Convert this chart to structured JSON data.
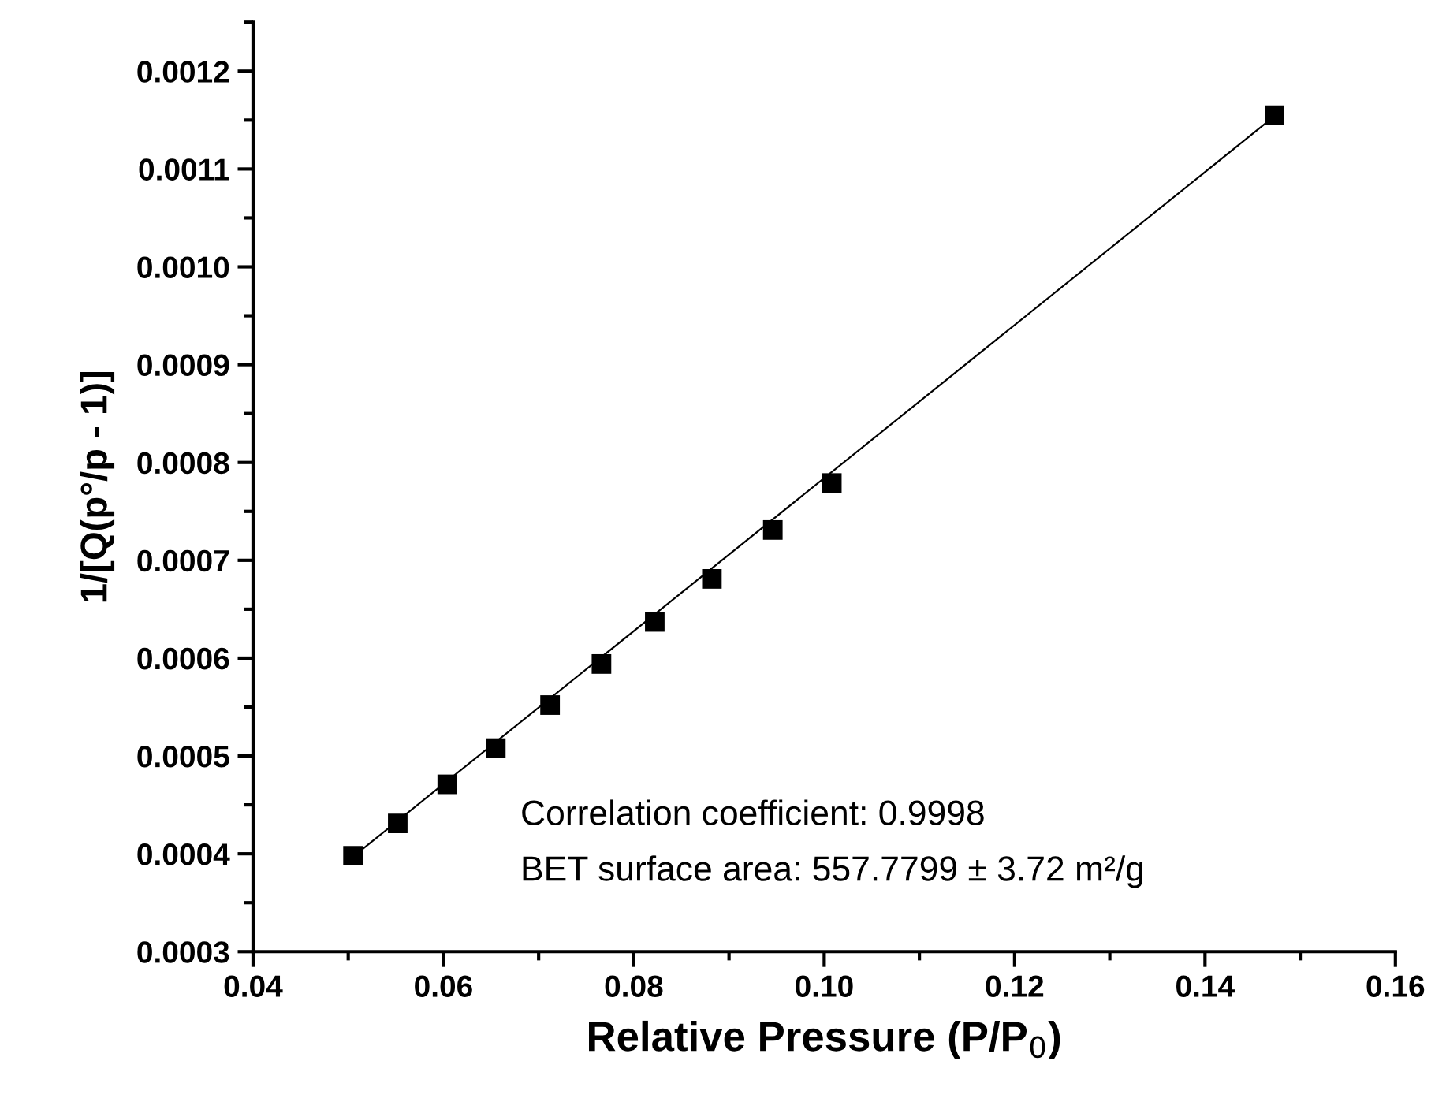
{
  "chart_data": {
    "type": "scatter",
    "xlabel": "Relative Pressure (P/P$_{0}$)",
    "ylabel": "1/[Q(p°/p - 1)]",
    "series": [
      {
        "color": "#000000",
        "marker": "square",
        "x": [
          0.0505,
          0.0552,
          0.0604,
          0.0655,
          0.0712,
          0.0766,
          0.0822,
          0.0882,
          0.0946,
          0.1008,
          0.1473
        ],
        "values": [
          0.000398,
          0.000431,
          0.000471,
          0.000508,
          0.000552,
          0.000594,
          0.000637,
          0.000681,
          0.000731,
          0.000779,
          0.001155
        ]
      },
      {
        "type": "line",
        "color": "#000000",
        "x": [
          0.0505,
          0.1473
        ],
        "values": [
          0.000397,
          0.001154
        ]
      }
    ],
    "annotations": [
      {
        "text": "Correlation coefficient: 0.9998"
      },
      {
        "text": "BET surface area: 557.7799 ± 3.72 m²/g"
      }
    ],
    "xlim": [
      0.04,
      0.16
    ],
    "ylim": [
      0.0003,
      0.00125
    ],
    "xticks": [
      0.04,
      {
        "value": 0.05,
        "label": null
      },
      0.06,
      {
        "value": 0.07,
        "label": null
      },
      0.08,
      {
        "value": 0.09,
        "label": null
      },
      {
        "value": 0.1,
        "label": "0.10"
      },
      {
        "value": 0.11,
        "label": null
      },
      0.12,
      {
        "value": 0.13,
        "label": null
      },
      0.14,
      {
        "value": 0.15,
        "label": null
      },
      0.16
    ],
    "yticks": [
      0.0003,
      {
        "value": 0.00035,
        "label": null
      },
      0.0004,
      {
        "value": 0.00045,
        "label": null
      },
      0.0005,
      {
        "value": 0.00055,
        "label": null
      },
      0.0006,
      {
        "value": 0.00065,
        "label": null
      },
      0.0007,
      {
        "value": 0.00075,
        "label": null
      },
      0.0008,
      {
        "value": 0.00085,
        "label": null
      },
      0.0009,
      {
        "value": 0.00095,
        "label": null
      },
      {
        "value": 0.001,
        "label": "0.0010"
      },
      {
        "value": 0.00105,
        "label": null
      },
      0.0011,
      {
        "value": 0.00115,
        "label": null
      },
      0.0012,
      {
        "value": 0.00125,
        "label": null
      }
    ],
    "grid": false,
    "legend": false
  }
}
